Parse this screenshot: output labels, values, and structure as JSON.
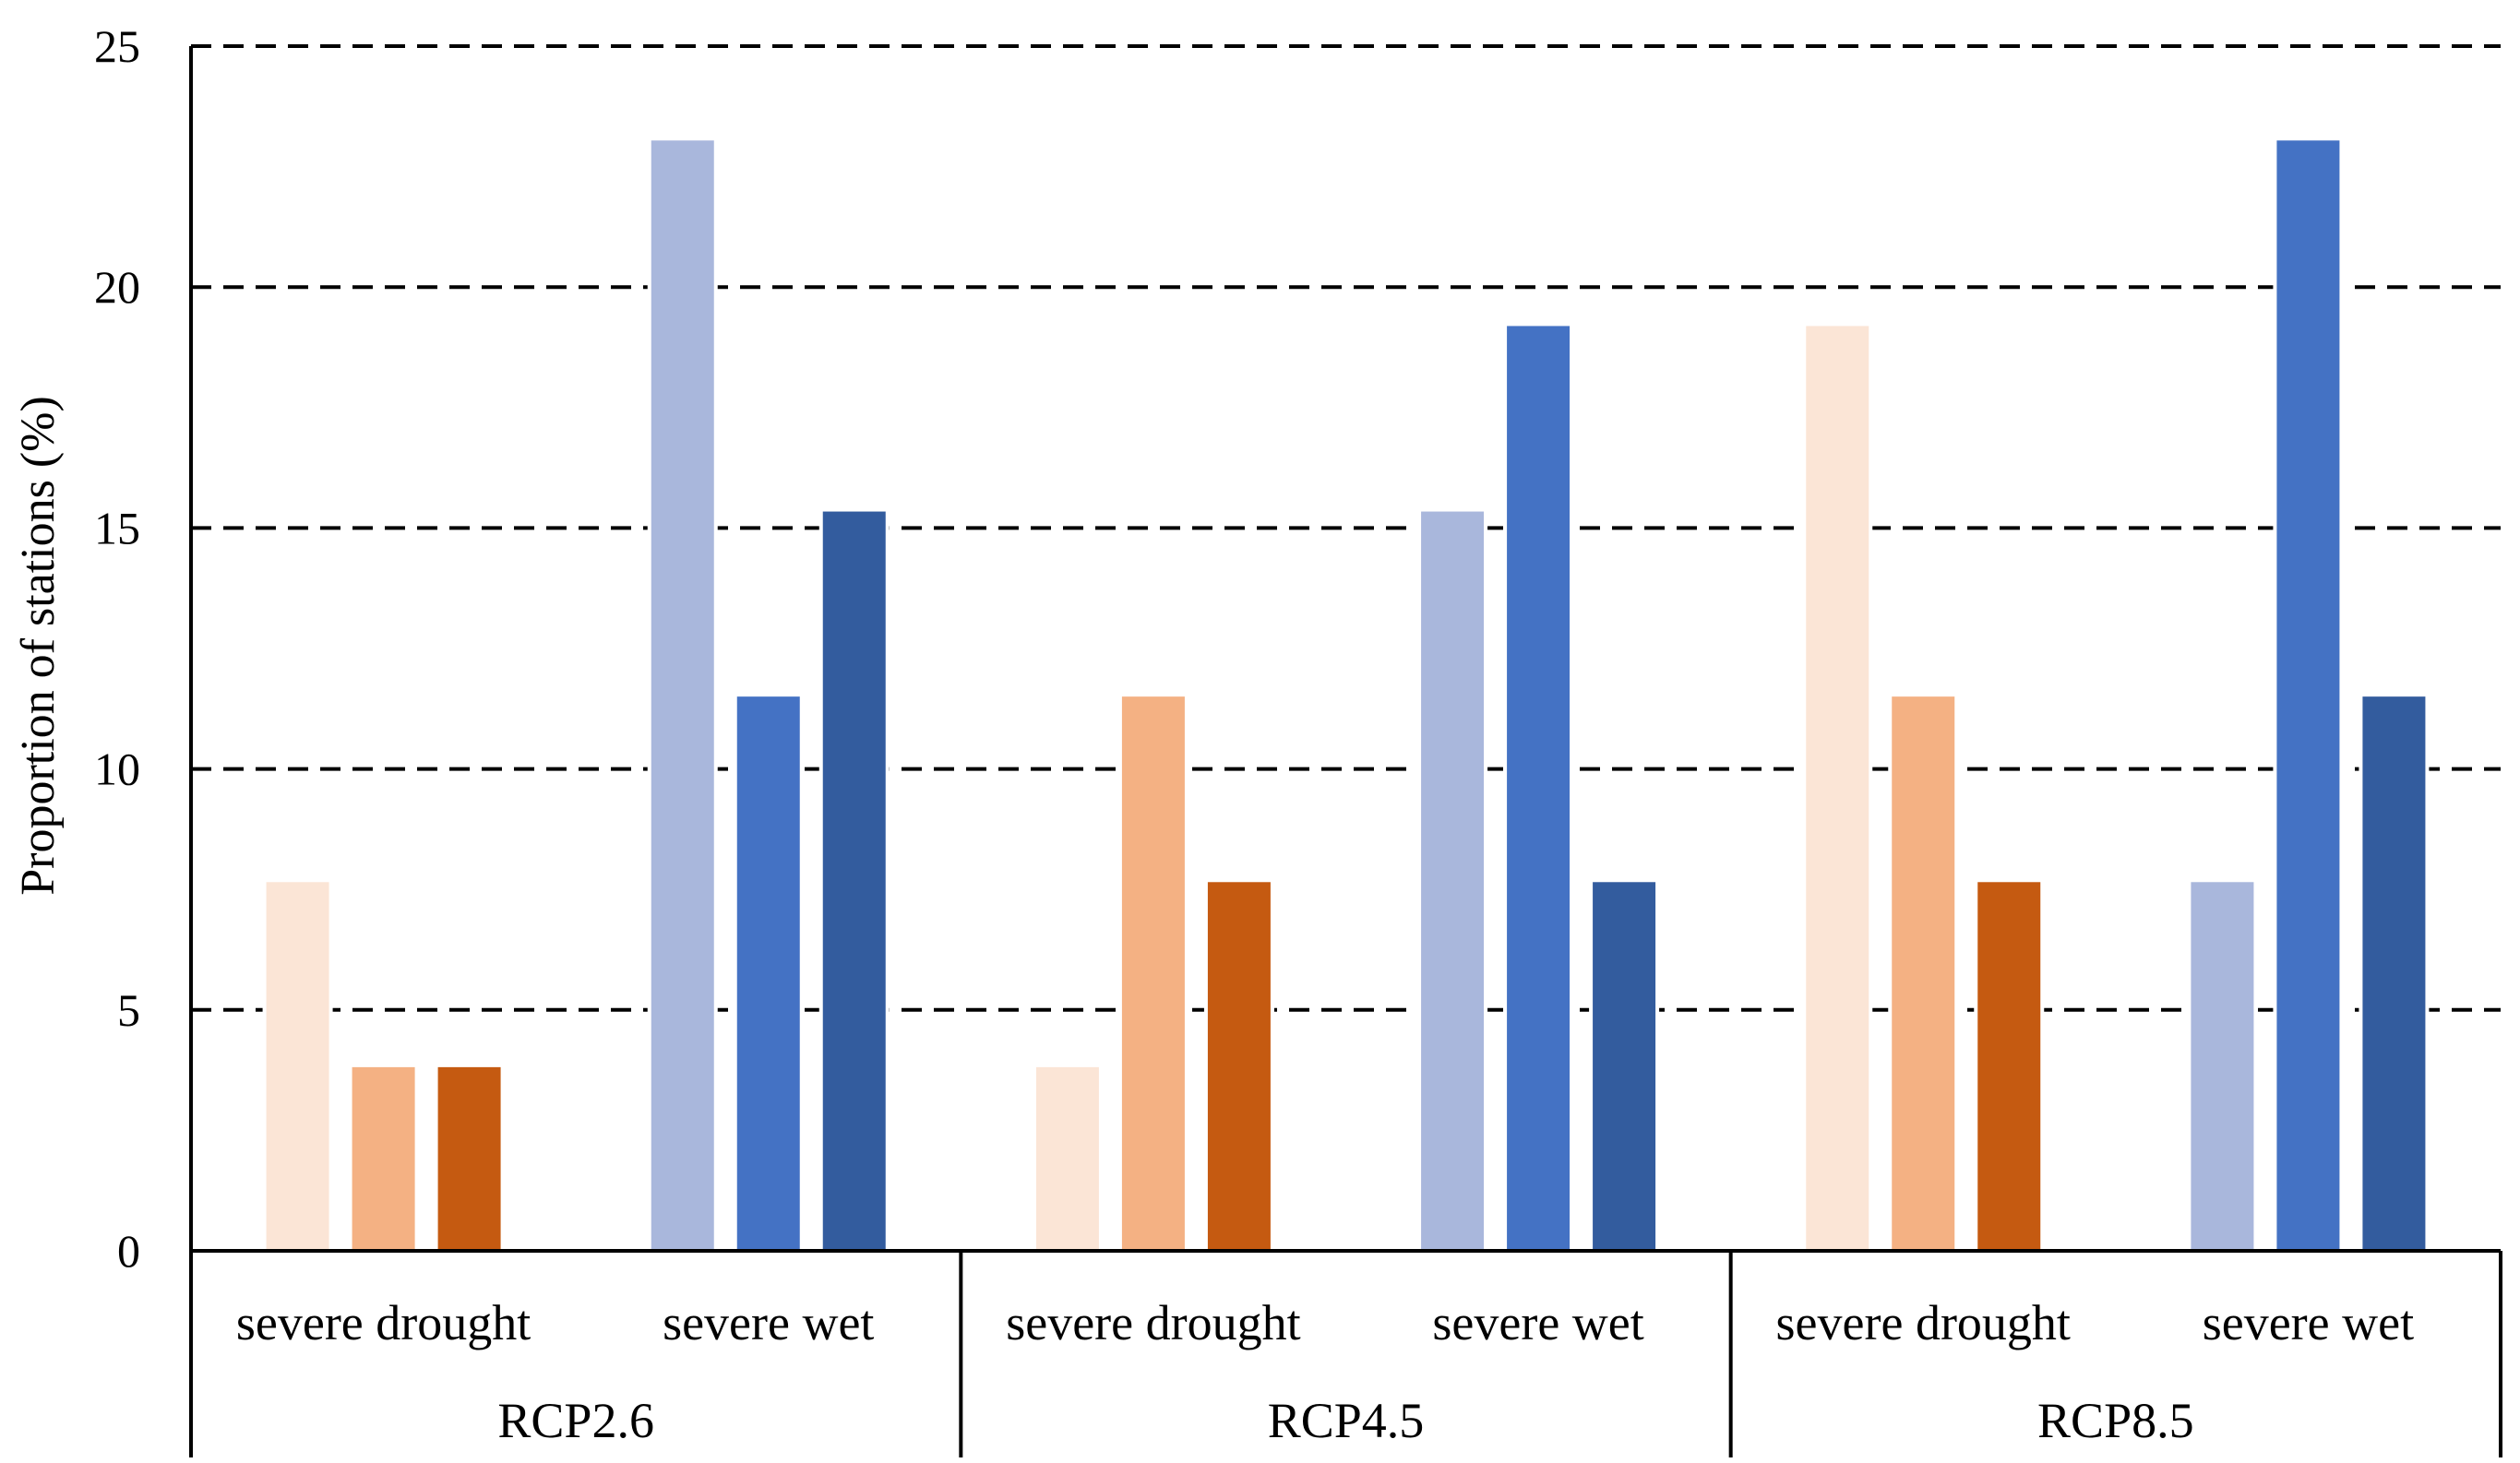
{
  "chart_data": {
    "type": "bar",
    "title": "",
    "xlabel": "",
    "ylabel": "Proportion of stations (%)",
    "ylim": [
      0,
      25
    ],
    "yticks": [
      0,
      5,
      10,
      15,
      20,
      25
    ],
    "grid": "horizontal-dashed",
    "legend": "none",
    "groups": [
      {
        "label": "RCP2.6",
        "categories": [
          {
            "label": "severe drought",
            "values": [
              7.69,
              3.85,
              3.85
            ],
            "colors": [
              "#fbe5d6",
              "#f4b183",
              "#c55a11"
            ]
          },
          {
            "label": "severe wet",
            "values": [
              23.08,
              11.54,
              15.38
            ],
            "colors": [
              "#a9b7dc",
              "#4472c4",
              "#335c9e"
            ]
          }
        ]
      },
      {
        "label": "RCP4.5",
        "categories": [
          {
            "label": "severe drought",
            "values": [
              3.85,
              11.54,
              7.69
            ],
            "colors": [
              "#fbe5d6",
              "#f4b183",
              "#c55a11"
            ]
          },
          {
            "label": "severe wet",
            "values": [
              15.38,
              19.23,
              7.69
            ],
            "colors": [
              "#a9b7dc",
              "#4472c4",
              "#335c9e"
            ]
          }
        ]
      },
      {
        "label": "RCP8.5",
        "categories": [
          {
            "label": "severe drought",
            "values": [
              19.23,
              11.54,
              7.69
            ],
            "colors": [
              "#fbe5d6",
              "#f4b183",
              "#c55a11"
            ]
          },
          {
            "label": "severe wet",
            "values": [
              7.69,
              23.08,
              11.54
            ],
            "colors": [
              "#a9b7dc",
              "#4472c4",
              "#335c9e"
            ]
          }
        ]
      }
    ]
  }
}
